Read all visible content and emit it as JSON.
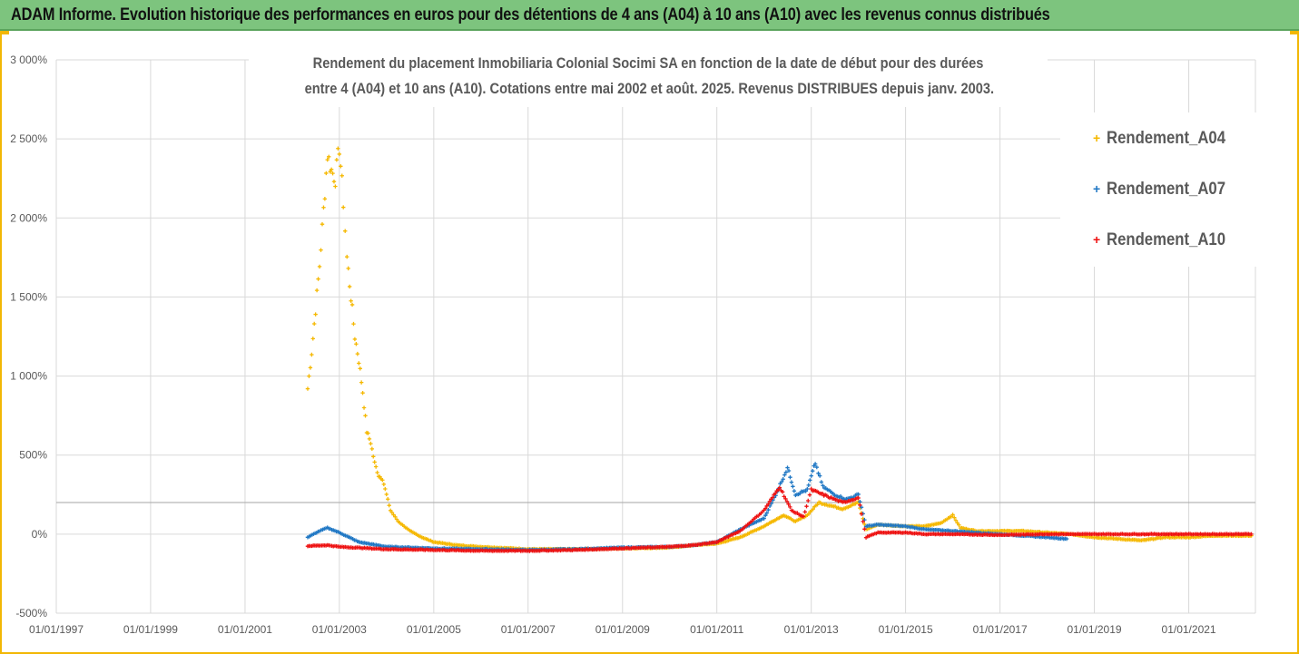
{
  "banner": {
    "title": "ADAM Informe. Evolution historique des performances en euros pour des détentions de 4 ans (A04) à 10 ans (A10) avec les revenus connus distribués"
  },
  "colors": {
    "banner_bg": "#7dc47e",
    "frame": "#f2b705",
    "A04": "#f5b800",
    "A07": "#1f77c4",
    "A10": "#ee1111",
    "grid": "#d9d9d9"
  },
  "chart_data": {
    "type": "scatter",
    "title_lines": [
      "Rendement du placement Inmobiliaria Colonial Socimi SA en fonction de la date de début pour des durées",
      "entre 4 (A04) et 10 ans (A10). Cotations entre mai 2002 et août. 2025. Revenus DISTRIBUES depuis janv. 2003."
    ],
    "x_axis": {
      "type": "date",
      "range": [
        "1997-01-01",
        "2022-06-01"
      ],
      "tick_labels": [
        "01/01/1997",
        "01/01/1999",
        "01/01/2001",
        "01/01/2003",
        "01/01/2005",
        "01/01/2007",
        "01/01/2009",
        "01/01/2011",
        "01/01/2013",
        "01/01/2015",
        "01/01/2017",
        "01/01/2019",
        "01/01/2021"
      ]
    },
    "y_axis": {
      "range": [
        -500,
        3000
      ],
      "unit": "%",
      "tick_values": [
        -500,
        0,
        500,
        1000,
        1500,
        2000,
        2500,
        3000
      ],
      "tick_labels": [
        "-500%",
        "0%",
        "500%",
        "1 000%",
        "1 500%",
        "2 000%",
        "2 500%",
        "3 000%"
      ]
    },
    "grid": true,
    "reference_line_y": 200,
    "legend_position": "right",
    "series": [
      {
        "name": "Rendement_A04",
        "color": "#f5b800",
        "marker": "+",
        "points": [
          [
            "2002-05-01",
            920
          ],
          [
            "2002-06-01",
            1150
          ],
          [
            "2002-07-01",
            1420
          ],
          [
            "2002-08-01",
            1700
          ],
          [
            "2002-09-01",
            2050
          ],
          [
            "2002-10-01",
            2400
          ],
          [
            "2002-11-01",
            2300
          ],
          [
            "2002-12-01",
            2250
          ],
          [
            "2003-01-01",
            2450
          ],
          [
            "2003-02-01",
            2100
          ],
          [
            "2003-03-01",
            1750
          ],
          [
            "2003-04-01",
            1500
          ],
          [
            "2003-05-01",
            1250
          ],
          [
            "2003-06-01",
            1100
          ],
          [
            "2003-07-01",
            900
          ],
          [
            "2003-08-01",
            650
          ],
          [
            "2003-09-01",
            580
          ],
          [
            "2003-10-01",
            450
          ],
          [
            "2003-11-01",
            370
          ],
          [
            "2003-12-01",
            350
          ],
          [
            "2004-02-01",
            150
          ],
          [
            "2004-04-01",
            80
          ],
          [
            "2004-07-01",
            20
          ],
          [
            "2004-10-01",
            -20
          ],
          [
            "2005-01-01",
            -50
          ],
          [
            "2005-07-01",
            -70
          ],
          [
            "2006-01-01",
            -80
          ],
          [
            "2007-01-01",
            -95
          ],
          [
            "2008-01-01",
            -95
          ],
          [
            "2009-01-01",
            -90
          ],
          [
            "2010-01-01",
            -85
          ],
          [
            "2010-07-01",
            -70
          ],
          [
            "2011-01-01",
            -60
          ],
          [
            "2011-07-01",
            -20
          ],
          [
            "2012-01-01",
            50
          ],
          [
            "2012-06-01",
            120
          ],
          [
            "2012-09-01",
            80
          ],
          [
            "2012-12-01",
            120
          ],
          [
            "2013-03-01",
            200
          ],
          [
            "2013-06-01",
            180
          ],
          [
            "2013-09-01",
            160
          ],
          [
            "2014-01-01",
            200
          ],
          [
            "2014-03-01",
            30
          ],
          [
            "2014-06-01",
            60
          ],
          [
            "2015-01-01",
            50
          ],
          [
            "2015-06-01",
            50
          ],
          [
            "2015-10-01",
            70
          ],
          [
            "2016-01-01",
            120
          ],
          [
            "2016-03-01",
            40
          ],
          [
            "2016-07-01",
            20
          ],
          [
            "2017-01-01",
            20
          ],
          [
            "2017-07-01",
            20
          ],
          [
            "2018-01-01",
            10
          ],
          [
            "2018-07-01",
            0
          ],
          [
            "2019-01-01",
            -20
          ],
          [
            "2019-07-01",
            -30
          ],
          [
            "2020-01-01",
            -40
          ],
          [
            "2020-07-01",
            -20
          ],
          [
            "2021-01-01",
            -20
          ],
          [
            "2021-07-01",
            -10
          ],
          [
            "2022-01-01",
            -10
          ],
          [
            "2022-05-01",
            -10
          ]
        ]
      },
      {
        "name": "Rendement_A07",
        "color": "#1f77c4",
        "marker": "+",
        "points": [
          [
            "2002-05-01",
            -20
          ],
          [
            "2002-08-01",
            20
          ],
          [
            "2002-10-01",
            40
          ],
          [
            "2003-01-01",
            10
          ],
          [
            "2003-06-01",
            -50
          ],
          [
            "2004-01-01",
            -80
          ],
          [
            "2005-01-01",
            -90
          ],
          [
            "2006-01-01",
            -95
          ],
          [
            "2007-01-01",
            -100
          ],
          [
            "2008-01-01",
            -95
          ],
          [
            "2009-01-01",
            -85
          ],
          [
            "2010-01-01",
            -80
          ],
          [
            "2010-07-01",
            -70
          ],
          [
            "2011-01-01",
            -50
          ],
          [
            "2011-07-01",
            30
          ],
          [
            "2012-01-01",
            100
          ],
          [
            "2012-04-01",
            250
          ],
          [
            "2012-07-01",
            420
          ],
          [
            "2012-09-01",
            250
          ],
          [
            "2012-12-01",
            280
          ],
          [
            "2013-02-01",
            450
          ],
          [
            "2013-04-01",
            300
          ],
          [
            "2013-07-01",
            250
          ],
          [
            "2013-10-01",
            220
          ],
          [
            "2014-01-01",
            250
          ],
          [
            "2014-03-01",
            50
          ],
          [
            "2014-06-01",
            60
          ],
          [
            "2015-01-01",
            50
          ],
          [
            "2015-06-01",
            30
          ],
          [
            "2016-01-01",
            20
          ],
          [
            "2016-07-01",
            10
          ],
          [
            "2017-01-01",
            0
          ],
          [
            "2017-07-01",
            -10
          ],
          [
            "2018-01-01",
            -20
          ],
          [
            "2018-06-01",
            -30
          ]
        ]
      },
      {
        "name": "Rendement_A10",
        "color": "#ee1111",
        "marker": "+",
        "points": [
          [
            "2002-05-01",
            -75
          ],
          [
            "2002-10-01",
            -70
          ],
          [
            "2003-01-01",
            -80
          ],
          [
            "2004-01-01",
            -95
          ],
          [
            "2005-01-01",
            -100
          ],
          [
            "2006-01-01",
            -105
          ],
          [
            "2007-01-01",
            -105
          ],
          [
            "2008-01-01",
            -100
          ],
          [
            "2009-01-01",
            -90
          ],
          [
            "2010-01-01",
            -80
          ],
          [
            "2010-07-01",
            -70
          ],
          [
            "2011-01-01",
            -50
          ],
          [
            "2011-07-01",
            20
          ],
          [
            "2012-01-01",
            150
          ],
          [
            "2012-05-01",
            300
          ],
          [
            "2012-08-01",
            150
          ],
          [
            "2012-11-01",
            110
          ],
          [
            "2013-01-01",
            280
          ],
          [
            "2013-05-01",
            240
          ],
          [
            "2013-09-01",
            200
          ],
          [
            "2014-01-01",
            230
          ],
          [
            "2014-03-01",
            -20
          ],
          [
            "2014-06-01",
            10
          ],
          [
            "2015-01-01",
            10
          ],
          [
            "2015-06-01",
            0
          ],
          [
            "2016-01-01",
            0
          ],
          [
            "2017-01-01",
            -5
          ],
          [
            "2018-01-01",
            0
          ],
          [
            "2019-01-01",
            0
          ],
          [
            "2020-01-01",
            0
          ],
          [
            "2021-01-01",
            0
          ],
          [
            "2022-01-01",
            0
          ],
          [
            "2022-05-01",
            0
          ]
        ]
      }
    ]
  }
}
